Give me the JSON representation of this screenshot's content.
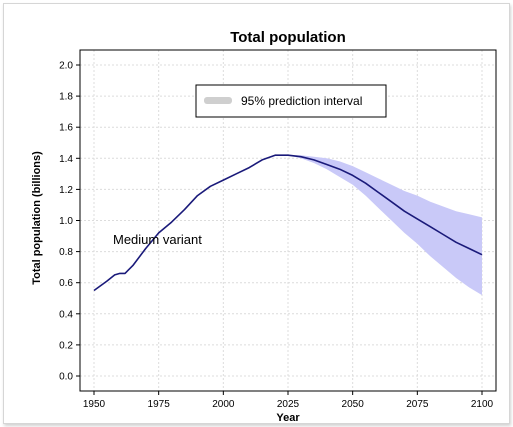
{
  "chart_data": {
    "type": "line",
    "title": "Total population",
    "xlabel": "Year",
    "ylabel": "Total population (billions)",
    "xlim": [
      1950,
      2100
    ],
    "ylim": [
      0.0,
      2.0
    ],
    "xticks": [
      1950,
      1975,
      2000,
      2025,
      2050,
      2075,
      2100
    ],
    "yticks": [
      0.0,
      0.2,
      0.4,
      0.6,
      0.8,
      1.0,
      1.2,
      1.4,
      1.6,
      1.8,
      2.0
    ],
    "ytick_labels": [
      "0.0",
      "0.2",
      "0.4",
      "0.6",
      "0.8",
      "1.0",
      "1.2",
      "1.4",
      "1.6",
      "1.8",
      "2.0"
    ],
    "grid": true,
    "legend": {
      "placement": "top-center",
      "entries": [
        "95% prediction interval"
      ]
    },
    "annotations": [
      "Medium variant"
    ],
    "series": [
      {
        "name": "Medium variant",
        "color": "#1a1a7a",
        "x": [
          1950,
          1955,
          1958,
          1960,
          1962,
          1965,
          1970,
          1975,
          1980,
          1985,
          1990,
          1995,
          2000,
          2005,
          2010,
          2015,
          2020,
          2025,
          2030,
          2035,
          2040,
          2045,
          2050,
          2055,
          2060,
          2065,
          2070,
          2075,
          2080,
          2085,
          2090,
          2095,
          2100
        ],
        "y": [
          0.55,
          0.61,
          0.65,
          0.66,
          0.66,
          0.71,
          0.82,
          0.92,
          0.99,
          1.07,
          1.16,
          1.22,
          1.26,
          1.3,
          1.34,
          1.39,
          1.42,
          1.42,
          1.41,
          1.39,
          1.36,
          1.33,
          1.29,
          1.24,
          1.18,
          1.12,
          1.06,
          1.01,
          0.96,
          0.91,
          0.86,
          0.82,
          0.78
        ]
      }
    ],
    "prediction_interval": {
      "name": "95% prediction interval",
      "color": "#c9c9f8",
      "x": [
        2020,
        2025,
        2030,
        2035,
        2040,
        2045,
        2050,
        2055,
        2060,
        2065,
        2070,
        2075,
        2080,
        2085,
        2090,
        2095,
        2100
      ],
      "lower": [
        1.42,
        1.42,
        1.4,
        1.37,
        1.33,
        1.28,
        1.23,
        1.16,
        1.08,
        1.0,
        0.92,
        0.85,
        0.77,
        0.7,
        0.63,
        0.57,
        0.52
      ],
      "upper": [
        1.42,
        1.42,
        1.42,
        1.41,
        1.4,
        1.38,
        1.35,
        1.31,
        1.27,
        1.23,
        1.19,
        1.16,
        1.12,
        1.09,
        1.06,
        1.04,
        1.02
      ]
    }
  }
}
